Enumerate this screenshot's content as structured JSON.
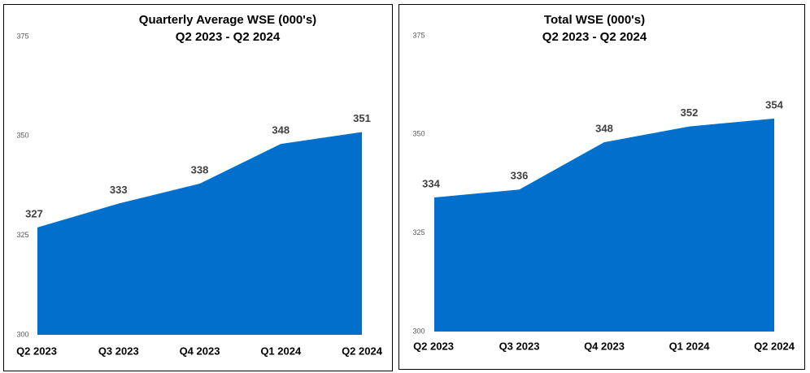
{
  "chart_data": [
    {
      "type": "area",
      "title": "Quarterly Average WSE (000's)",
      "subtitle": "Q2 2023 - Q2 2024",
      "categories": [
        "Q2 2023",
        "Q3 2023",
        "Q4 2023",
        "Q1 2024",
        "Q2 2024"
      ],
      "values": [
        327,
        333,
        338,
        348,
        351
      ],
      "color": "#0070cc",
      "ylim": [
        300,
        375
      ],
      "yticks": [
        300,
        325,
        350,
        375
      ]
    },
    {
      "type": "area",
      "title": "Total WSE (000's)",
      "subtitle": "Q2 2023 - Q2 2024",
      "categories": [
        "Q2 2023",
        "Q3 2023",
        "Q4 2023",
        "Q1 2024",
        "Q2 2024"
      ],
      "values": [
        334,
        336,
        348,
        352,
        354
      ],
      "color": "#0070cc",
      "ylim": [
        300,
        375
      ],
      "yticks": [
        300,
        325,
        350,
        375
      ]
    }
  ]
}
